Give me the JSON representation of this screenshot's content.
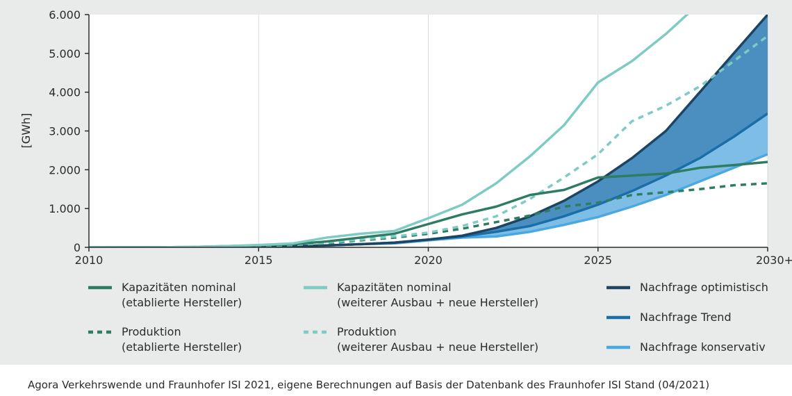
{
  "chart_data": {
    "type": "line",
    "ylabel": "[GWh]",
    "xlim": [
      2010,
      2030
    ],
    "ylim": [
      0,
      6000
    ],
    "x_ticks": [
      {
        "value": 2010,
        "label": "2010"
      },
      {
        "value": 2015,
        "label": "2015"
      },
      {
        "value": 2020,
        "label": "2020"
      },
      {
        "value": 2025,
        "label": "2025"
      },
      {
        "value": 2030,
        "label": "2030+"
      }
    ],
    "y_ticks": [
      {
        "value": 0,
        "label": "0"
      },
      {
        "value": 1000,
        "label": "1.000"
      },
      {
        "value": 2000,
        "label": "2.000"
      },
      {
        "value": 3000,
        "label": "3.000"
      },
      {
        "value": 4000,
        "label": "4.000"
      },
      {
        "value": 5000,
        "label": "5.000"
      },
      {
        "value": 6000,
        "label": "6.000"
      }
    ],
    "grid": "vertical",
    "x": [
      2010,
      2011,
      2012,
      2013,
      2014,
      2015,
      2016,
      2017,
      2018,
      2019,
      2020,
      2021,
      2022,
      2023,
      2024,
      2025,
      2026,
      2027,
      2028,
      2029,
      2030
    ],
    "series": [
      {
        "id": "kap_etab",
        "name": "Kapazitäten nominal",
        "name2": "(etablierte Hersteller)",
        "color": "#2e7d63",
        "style": "solid",
        "values": [
          0,
          0,
          0,
          10,
          30,
          50,
          80,
          150,
          250,
          350,
          600,
          850,
          1050,
          1350,
          1480,
          1800,
          1850,
          1900,
          2050,
          2120,
          2200
        ]
      },
      {
        "id": "kap_neu",
        "name": "Kapazitäten nominal",
        "name2": "(weiterer Ausbau + neue Hersteller)",
        "color": "#7ecbc3",
        "style": "solid",
        "values": [
          0,
          0,
          0,
          10,
          30,
          60,
          100,
          250,
          350,
          420,
          750,
          1100,
          1650,
          2350,
          3150,
          4250,
          4800,
          5500,
          6300,
          null,
          null
        ]
      },
      {
        "id": "prod_etab",
        "name": "Produktion",
        "name2": "(etablierte Hersteller)",
        "color": "#2e7d63",
        "style": "dashed",
        "values": [
          0,
          0,
          0,
          5,
          20,
          40,
          60,
          100,
          180,
          250,
          350,
          480,
          650,
          820,
          1050,
          1150,
          1350,
          1420,
          1500,
          1600,
          1650
        ]
      },
      {
        "id": "prod_neu",
        "name": "Produktion",
        "name2": "(weiterer Ausbau + neue Hersteller)",
        "color": "#7ecbc3",
        "style": "dashed",
        "values": [
          0,
          0,
          0,
          5,
          20,
          40,
          60,
          120,
          200,
          280,
          380,
          550,
          800,
          1250,
          1800,
          2400,
          3250,
          3650,
          4150,
          4800,
          5450
        ]
      },
      {
        "id": "nach_opt",
        "name": "Nachfrage optimistisch",
        "color": "#1d4562",
        "style": "solid",
        "values": [
          0,
          0,
          0,
          0,
          10,
          20,
          30,
          50,
          80,
          120,
          200,
          300,
          500,
          800,
          1200,
          1700,
          2300,
          3000,
          4000,
          5000,
          6000
        ]
      },
      {
        "id": "nach_trend",
        "name": "Nachfrage Trend",
        "color": "#1a6ea8",
        "style": "solid",
        "values": [
          0,
          0,
          0,
          0,
          10,
          20,
          30,
          50,
          80,
          120,
          200,
          280,
          400,
          550,
          800,
          1100,
          1450,
          1850,
          2300,
          2850,
          3450
        ]
      },
      {
        "id": "nach_kons",
        "name": "Nachfrage konservativ",
        "color": "#4aa8e0",
        "style": "solid",
        "values": [
          0,
          0,
          0,
          0,
          10,
          20,
          30,
          50,
          80,
          100,
          180,
          250,
          280,
          400,
          580,
          780,
          1050,
          1350,
          1700,
          2050,
          2400
        ]
      }
    ],
    "bands": [
      {
        "upper": "nach_opt",
        "lower": "nach_trend",
        "color": "#4a8fc0"
      },
      {
        "upper": "nach_trend",
        "lower": "nach_kons",
        "color": "#7ebde6"
      }
    ],
    "legend": "bottom"
  },
  "source": "Agora Verkehrswende und Fraunhofer ISI 2021, eigene Berechnungen auf Basis der Datenbank des Fraunhofer ISI Stand (04/2021)"
}
